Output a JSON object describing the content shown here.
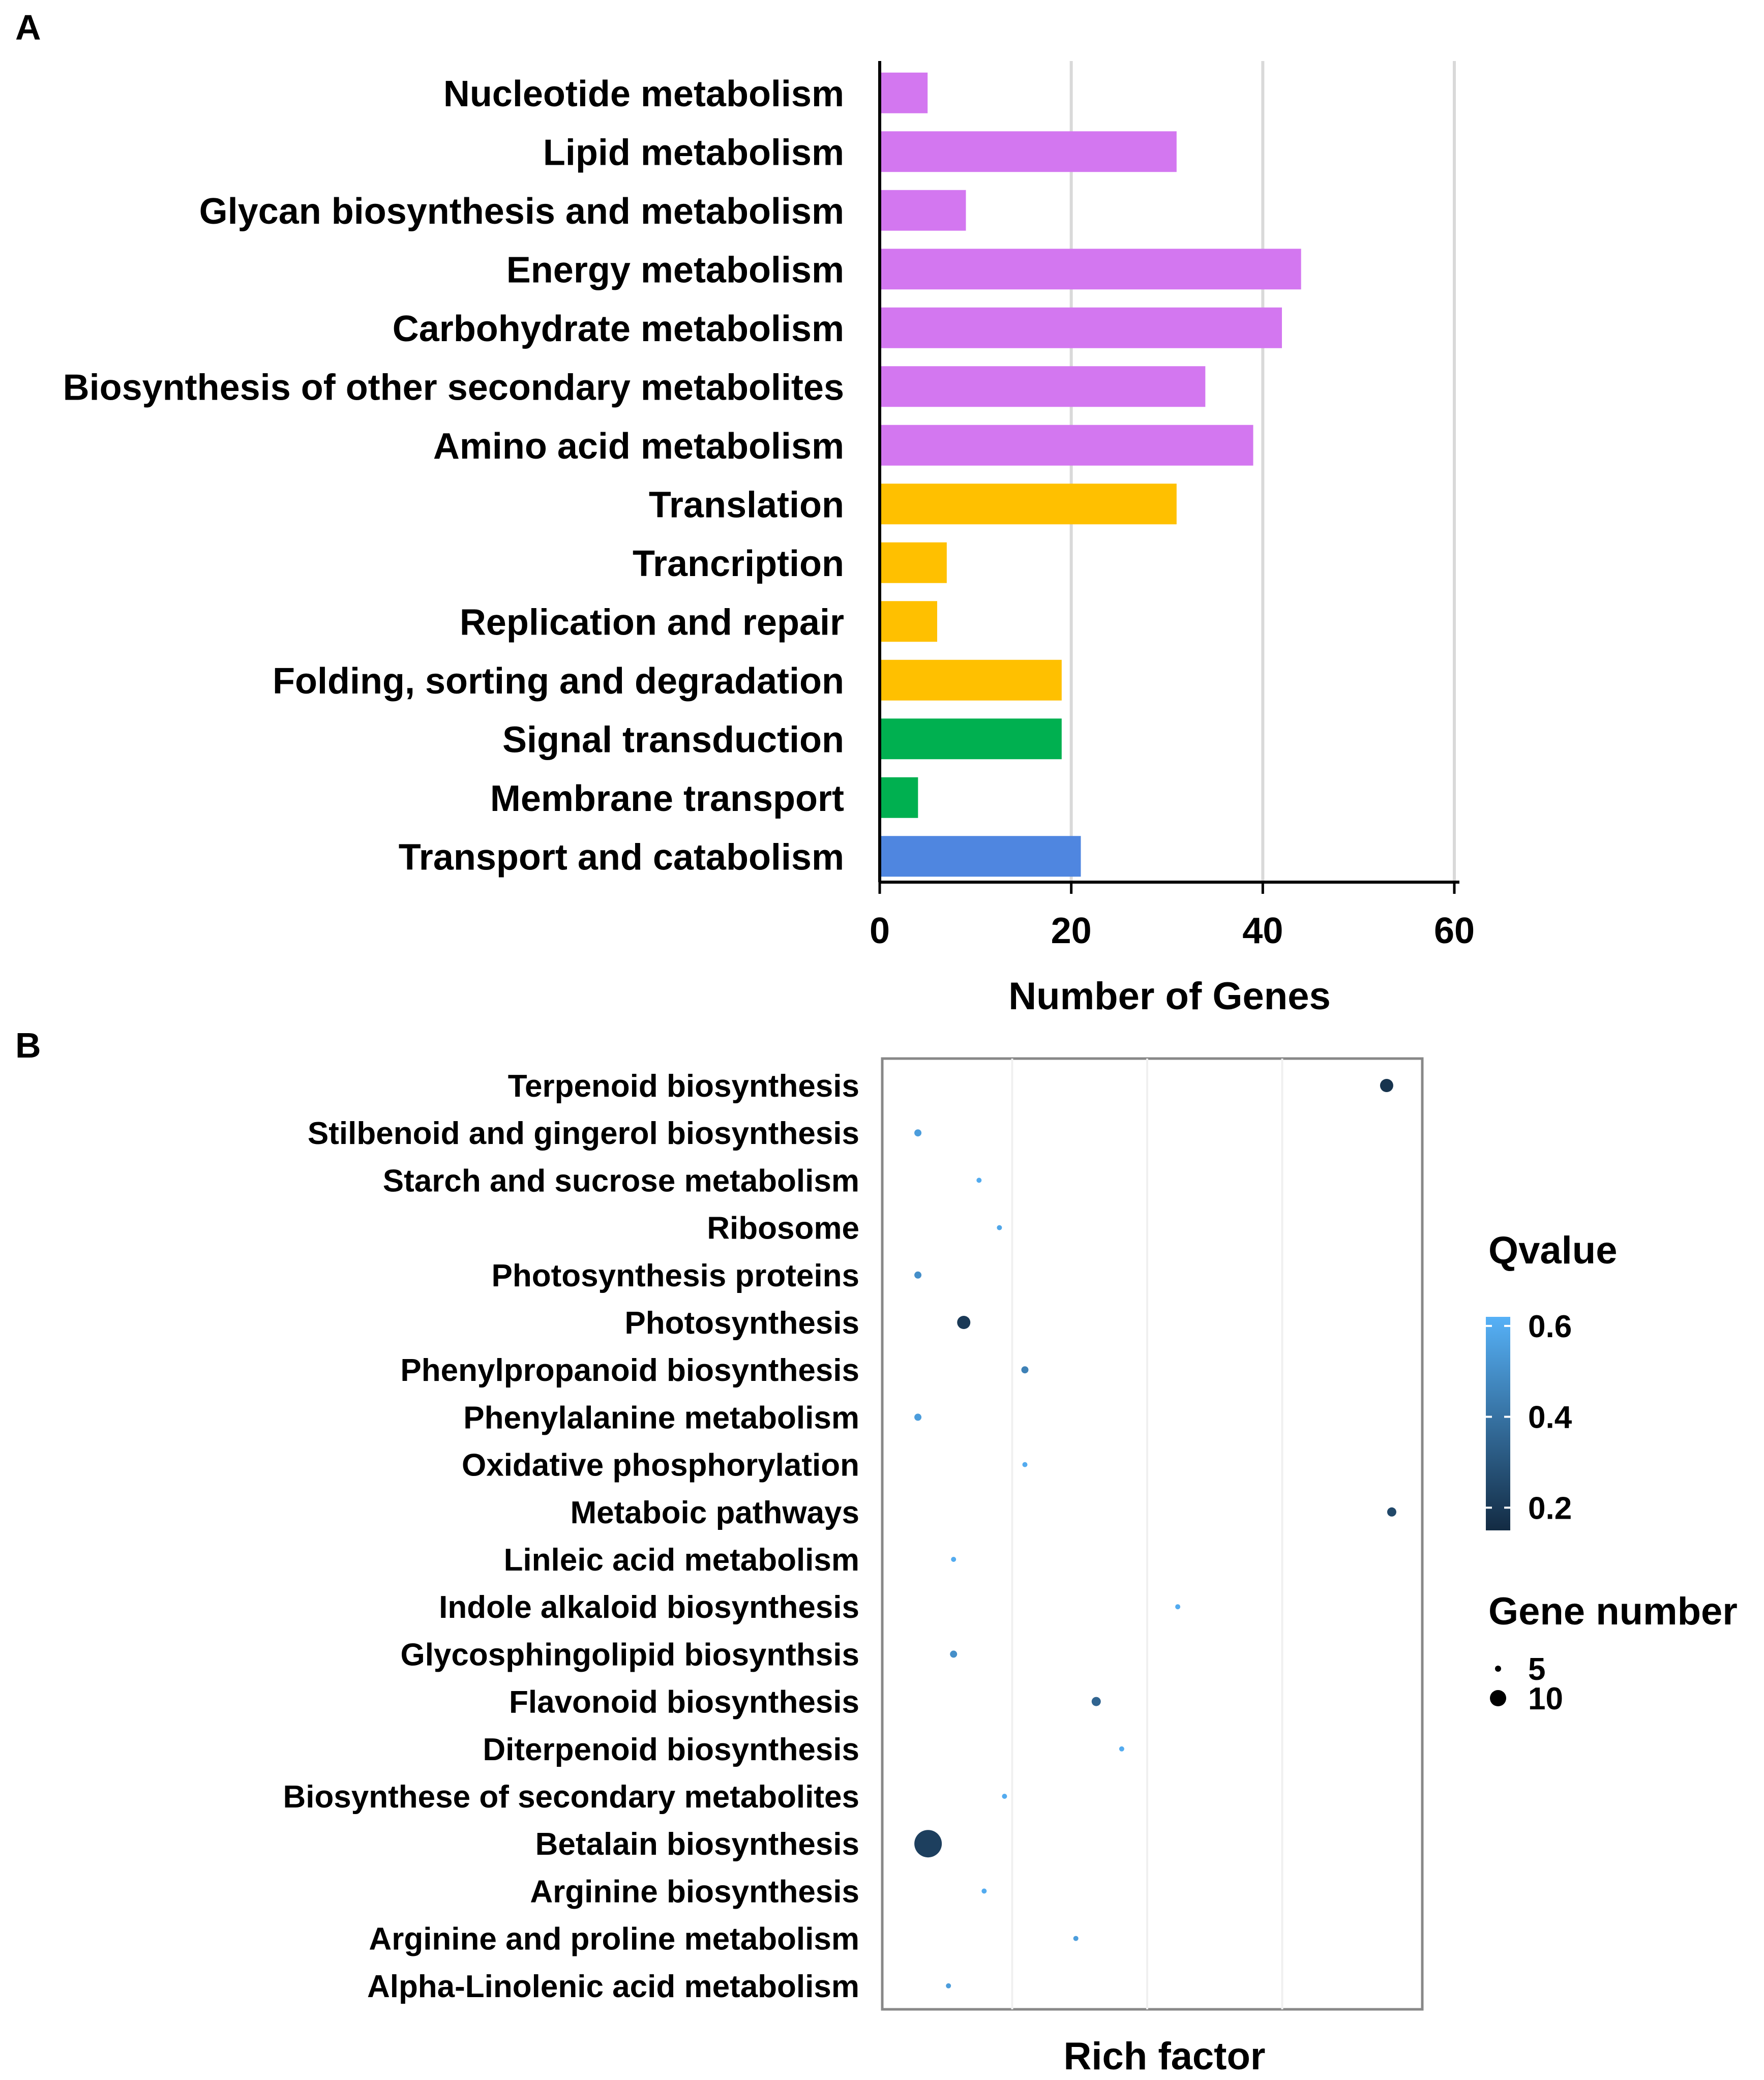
{
  "chart_data": [
    {
      "panel": "A",
      "type": "bar",
      "orientation": "horizontal",
      "categories": [
        "Nucleotide metabolism",
        "Lipid metabolism",
        "Glycan biosynthesis and metabolism",
        "Energy metabolism",
        "Carbohydrate metabolism",
        "Biosynthesis of other secondary metabolites",
        "Amino acid metabolism",
        "Translation",
        "Trancription",
        "Replication and repair",
        "Folding, sorting and degradation",
        "Signal transduction",
        "Membrane transport",
        "Transport and catabolism"
      ],
      "values": [
        5,
        31,
        9,
        44,
        42,
        34,
        39,
        31,
        7,
        6,
        19,
        19,
        4,
        21
      ],
      "bar_colors": [
        "#d377f0",
        "#d377f0",
        "#d377f0",
        "#d377f0",
        "#d377f0",
        "#d377f0",
        "#d377f0",
        "#ffc000",
        "#ffc000",
        "#ffc000",
        "#ffc000",
        "#00b050",
        "#00b050",
        "#4f86e0"
      ],
      "xlabel": "Number of Genes",
      "xlim": [
        0,
        60
      ],
      "xticks": [
        "0",
        "20",
        "40",
        "60"
      ],
      "grid": "vertical"
    },
    {
      "panel": "B",
      "type": "scatter",
      "categories": [
        "Terpenoid biosynthesis",
        "Stilbenoid and gingerol biosynthesis",
        "Starch and sucrose metabolism",
        "Ribosome",
        "Photosynthesis proteins",
        "Photosynthesis",
        "Phenylpropanoid biosynthesis",
        "Phenylalanine metabolism",
        "Oxidative phosphorylation",
        "Metaboic pathways",
        "Linleic acid metabolism",
        "Indole alkaloid biosynthesis",
        "Glycosphingolipid biosynthsis",
        "Flavonoid biosynthesis",
        "Diterpenoid biosynthesis",
        "Biosynthese of secondary metabolites",
        "Betalain biosynthesis",
        "Arginine biosynthesis",
        "Arginine and proline metabolism",
        "Alpha-Linolenic acid metabolism"
      ],
      "rich_factor": [
        0.96,
        0.04,
        0.16,
        0.2,
        0.04,
        0.13,
        0.25,
        0.04,
        0.25,
        0.97,
        0.11,
        0.55,
        0.11,
        0.39,
        0.44,
        0.21,
        0.06,
        0.17,
        0.35,
        0.1
      ],
      "qvalue": [
        0.18,
        0.55,
        0.6,
        0.58,
        0.5,
        0.2,
        0.45,
        0.55,
        0.6,
        0.25,
        0.6,
        0.6,
        0.5,
        0.35,
        0.6,
        0.6,
        0.22,
        0.6,
        0.55,
        0.55
      ],
      "gene_number": [
        5,
        2,
        1,
        1,
        2,
        5,
        2,
        2,
        1,
        3,
        1,
        1,
        2,
        3,
        1,
        1,
        12,
        1,
        1,
        1
      ],
      "xlabel": "Rich factor",
      "legend": {
        "color_title": "Qvalue",
        "color_ticks": [
          "0.6",
          "0.4",
          "0.2"
        ],
        "size_title": "Gene number",
        "size_ticks": [
          "5",
          "10"
        ],
        "placement": "right"
      },
      "colors": {
        "low_q": "#132b43",
        "high_q": "#56b1f7"
      }
    }
  ],
  "panel_labels": {
    "a": "A",
    "b": "B"
  }
}
